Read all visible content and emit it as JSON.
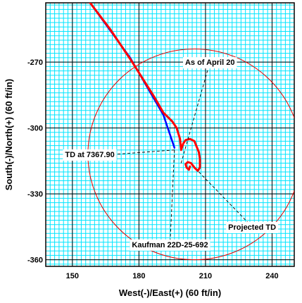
{
  "chart_data": {
    "type": "line",
    "title": "",
    "xlabel": "West(-)/East(+) (60 ft/in)",
    "ylabel": "South(-)/North(+) (60 ft/in)",
    "xlim": [
      138,
      250
    ],
    "ylim": [
      -363,
      -243
    ],
    "x_ticks": [
      150,
      180,
      210,
      240
    ],
    "y_ticks": [
      -270,
      -300,
      -330,
      -360
    ],
    "grid": true,
    "colors": {
      "grid": "#00e5ff",
      "actual": "#ff0000",
      "planned": "#0000ff",
      "circle": "#e00000",
      "leader": "#000000"
    },
    "series": [
      {
        "kind": "planned",
        "color": "#0000ff",
        "x": [
          158,
          176,
          191,
          196
        ],
        "y": [
          -243,
          -268,
          -294,
          -309
        ]
      },
      {
        "kind": "actual",
        "color": "#ff0000",
        "x": [
          158,
          167,
          177,
          187,
          191,
          195,
          197,
          198.5,
          199,
          200,
          201,
          203,
          205,
          206,
          207,
          207.5,
          207.5,
          206.5,
          205,
          203.5,
          202,
          201,
          201.5,
          202.5,
          203
        ],
        "y": [
          -243,
          -255,
          -270,
          -286,
          -293,
          -297,
          -300,
          -305,
          -310,
          -307,
          -305.5,
          -305,
          -306,
          -308.5,
          -311,
          -314,
          -318,
          -319.5,
          -318,
          -316,
          -315.5,
          -316.5,
          -318,
          -319,
          -317.5
        ]
      }
    ],
    "circle": {
      "cx": 205,
      "cy": -312,
      "r": 48
    },
    "annotations": [
      {
        "text": "As of April 20",
        "point": [
          199,
          -316
        ],
        "label": [
          212,
          -270
        ],
        "anchor": "middle"
      },
      {
        "text": "TD at 7367.90",
        "point": [
          196,
          -310
        ],
        "label": [
          169,
          -312
        ],
        "anchor": "end"
      },
      {
        "text": "Projected TD",
        "point": [
          207,
          -320
        ],
        "label": [
          231,
          -345
        ],
        "anchor": "middle"
      },
      {
        "text": "Kaufman 22D-25-692",
        "point": [
          196,
          -310
        ],
        "label": [
          194,
          -353
        ],
        "anchor": "middle"
      }
    ]
  }
}
